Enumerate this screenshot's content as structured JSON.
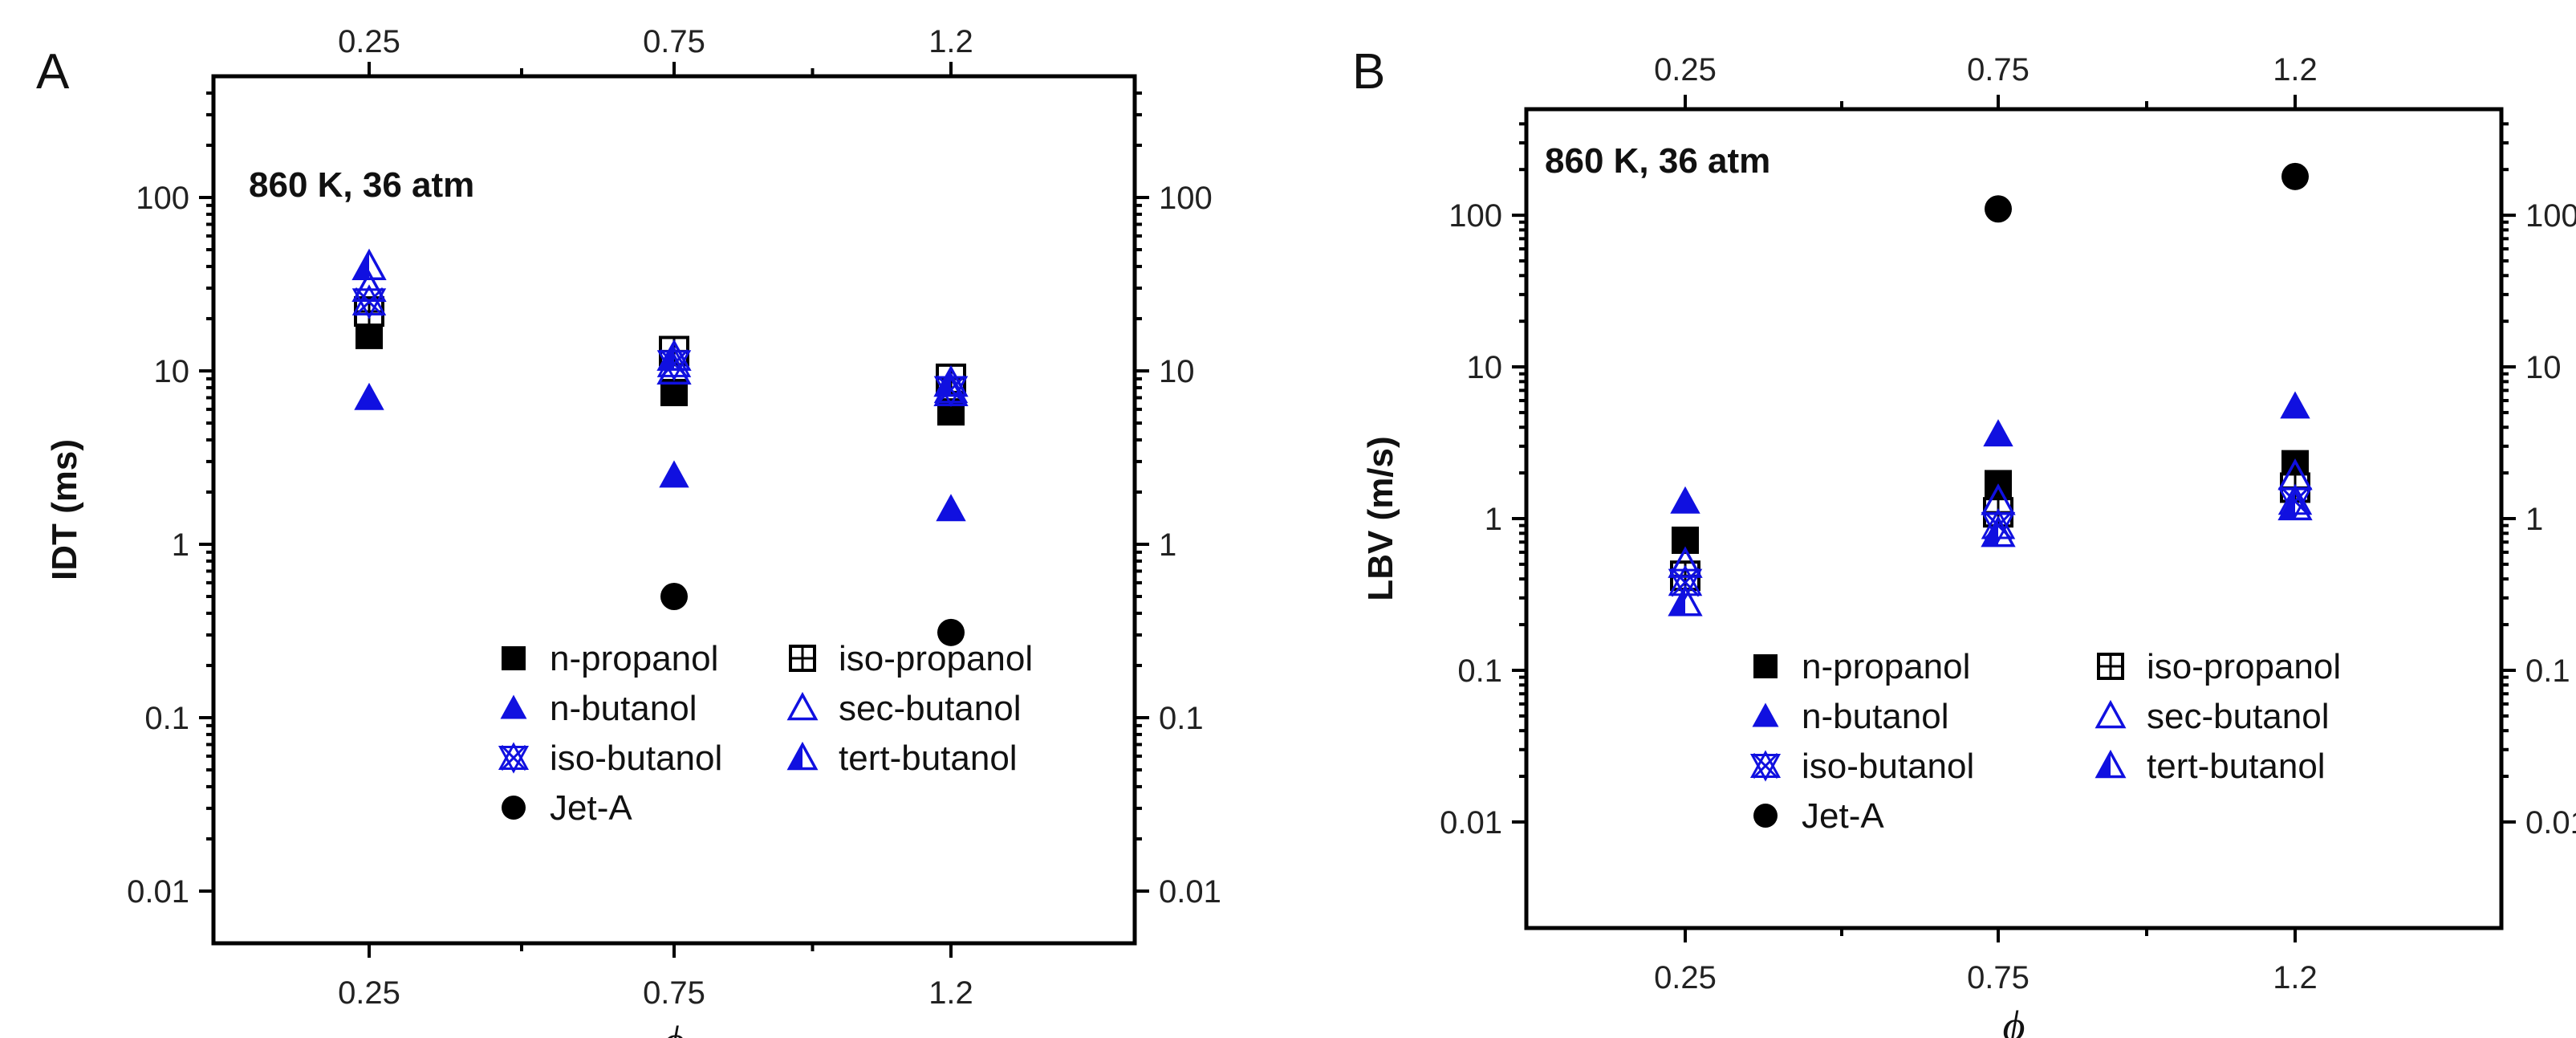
{
  "chart_data": [
    {
      "type": "scatter",
      "panel_label": "A",
      "annotation": "860 K, 36 atm",
      "xlabel": "ϕ",
      "ylabel": "IDT (ms)",
      "yscale": "log",
      "ylim": [
        0.005,
        500
      ],
      "categories": [
        "0.25",
        "0.75",
        "1.2"
      ],
      "top_tick_labels": [
        "0.25",
        "0.75",
        "1.2"
      ],
      "y_tick_labels": [
        "0.01",
        "0.1",
        "1",
        "10",
        "100"
      ],
      "y_tick_values": [
        0.01,
        0.1,
        1,
        10,
        100
      ],
      "legend_columns": 2,
      "series": [
        {
          "name": "n-propanol",
          "marker": "square-filled",
          "color": "#000000",
          "values": [
            16,
            7.5,
            5.8
          ]
        },
        {
          "name": "iso-propanol",
          "marker": "square-crossed",
          "color": "#000000",
          "values": [
            22,
            13,
            9
          ]
        },
        {
          "name": "n-butanol",
          "marker": "triangle-filled",
          "color": "#1010e0",
          "values": [
            7,
            2.5,
            1.6
          ]
        },
        {
          "name": "sec-butanol",
          "marker": "triangle-open",
          "color": "#1010e0",
          "values": [
            30,
            10,
            7.5
          ]
        },
        {
          "name": "iso-butanol",
          "marker": "star-x",
          "color": "#1010e0",
          "values": [
            25,
            11,
            7.8
          ]
        },
        {
          "name": "tert-butanol",
          "marker": "triangle-half",
          "color": "#1010e0",
          "values": [
            40,
            12,
            8.5
          ]
        },
        {
          "name": "Jet-A",
          "marker": "circle-filled",
          "color": "#000000",
          "values": [
            null,
            0.5,
            0.31
          ]
        }
      ]
    },
    {
      "type": "scatter",
      "panel_label": "B",
      "annotation": "860 K, 36 atm",
      "xlabel": "ϕ",
      "ylabel": "LBV (m/s)",
      "yscale": "log",
      "ylim": [
        0.002,
        500
      ],
      "categories": [
        "0.25",
        "0.75",
        "1.2"
      ],
      "top_tick_labels": [
        "0.25",
        "0.75",
        "1.2"
      ],
      "y_tick_labels": [
        "0.01",
        "0.1",
        "1",
        "10",
        "100"
      ],
      "y_tick_values": [
        0.01,
        0.1,
        1,
        10,
        100
      ],
      "legend_columns": 2,
      "series": [
        {
          "name": "n-propanol",
          "marker": "square-filled",
          "color": "#000000",
          "values": [
            0.72,
            1.7,
            2.3
          ]
        },
        {
          "name": "iso-propanol",
          "marker": "square-crossed",
          "color": "#000000",
          "values": [
            0.42,
            1.1,
            1.6
          ]
        },
        {
          "name": "n-butanol",
          "marker": "triangle-filled",
          "color": "#1010e0",
          "values": [
            1.3,
            3.6,
            5.5
          ]
        },
        {
          "name": "sec-butanol",
          "marker": "triangle-open",
          "color": "#1010e0",
          "values": [
            0.5,
            1.3,
            1.9
          ]
        },
        {
          "name": "iso-butanol",
          "marker": "star-x",
          "color": "#1010e0",
          "values": [
            0.38,
            0.9,
            1.3
          ]
        },
        {
          "name": "tert-butanol",
          "marker": "triangle-half",
          "color": "#1010e0",
          "values": [
            0.28,
            0.8,
            1.2
          ]
        },
        {
          "name": "Jet-A",
          "marker": "circle-filled",
          "color": "#000000",
          "values": [
            null,
            110,
            180
          ]
        }
      ]
    }
  ]
}
